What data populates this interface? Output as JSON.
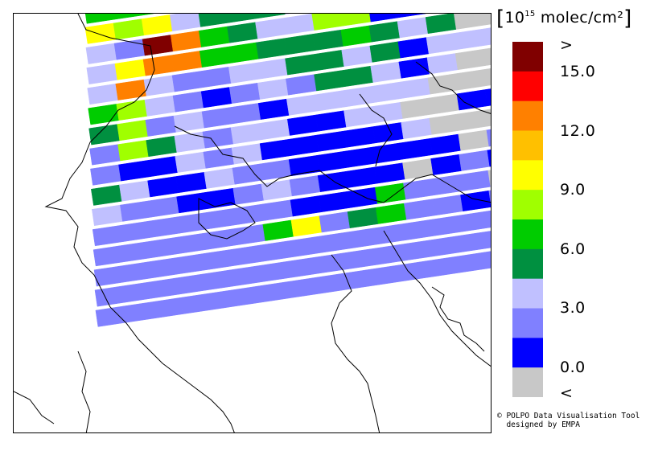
{
  "legend": {
    "title_bracket_open": "[",
    "title_base": "10",
    "title_exp": "15",
    "title_unit": " molec/cm²",
    "title_bracket_close": "]",
    "labels": [
      ">",
      "15.0",
      "12.0",
      "9.0",
      "6.0",
      "3.0",
      "0.0",
      "<"
    ],
    "colors": [
      "#800000",
      "#ff0000",
      "#ff8000",
      "#ffc000",
      "#ffff00",
      "#a0ff00",
      "#00cc00",
      "#009040",
      "#c0c0ff",
      "#8080ff",
      "#0000ff",
      "#c8c8c8"
    ]
  },
  "credit": {
    "line1": "© POLPO Data Visualisation Tool",
    "line2": "  designed by EMPA"
  },
  "map": {
    "rows": [
      "GGGDDDDgYYLBBEEB",
      "YgYLDDDLMMEEEBBB",
      "LMROGDLLggBBMEEB",
      "LYOOGGDDDGDLDEEB",
      "LOLMMLLDDLDBLLLE",
      "GgLMBMLMDDLBLEEE",
      "DgMLMMBLLLLLEEEL",
      "MgDLMLLBBLLEEBBL",
      "MBBLMLBBBBBLEEEM",
      "DLBBLMMBBBBBBEME",
      "LMMBBMLMBBBEBMBL",
      "MMMMMMMBBBGMMMEM",
      "MMMMMMGYMDGMMBMM",
      "MMMMMMMMMMMMMMMM",
      "MMMMMMMMMMMMMMMM",
      "MMMMMMMMMMMMMMMM"
    ],
    "palette": {
      "R": "#800000",
      "O": "#ff8000",
      "A": "#ffc000",
      "Y": "#ffff00",
      "g": "#a0ff00",
      "G": "#00cc00",
      "D": "#009040",
      "L": "#c0c0ff",
      "M": "#8080ff",
      "B": "#0000ff",
      "E": "#c8c8c8"
    }
  }
}
